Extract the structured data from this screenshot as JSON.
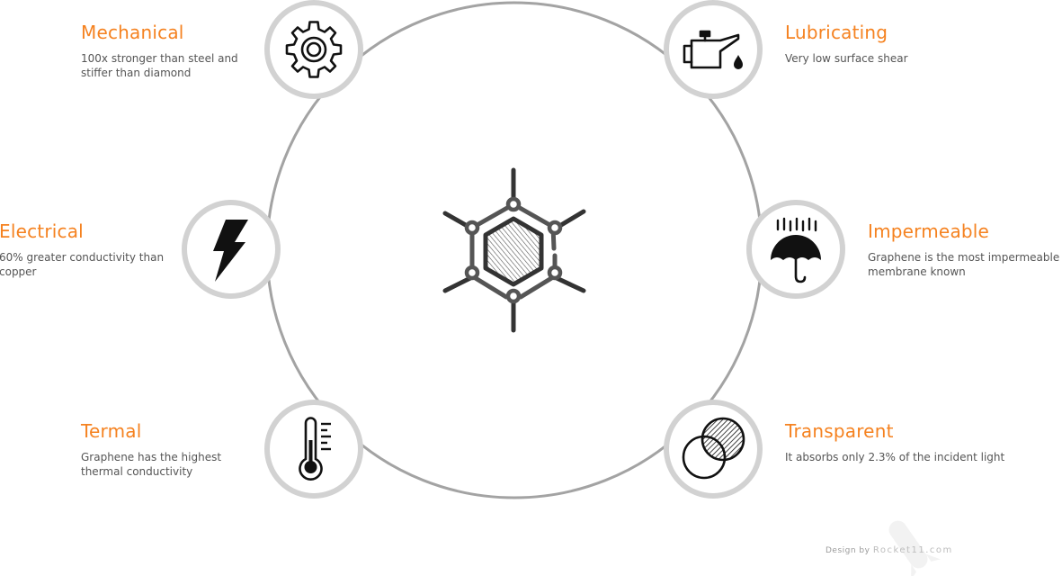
{
  "features": {
    "mechanical": {
      "title": "Mechanical",
      "description": "100x stronger than steel and stiffer than diamond",
      "icon": "gear-icon"
    },
    "lubricating": {
      "title": "Lubricating",
      "description": "Very low surface shear",
      "icon": "oil-can-icon"
    },
    "electrical": {
      "title": "Electrical",
      "description": "60% greater conductivity than copper",
      "icon": "lightning-icon"
    },
    "impermeable": {
      "title": "Impermeable",
      "description": "Graphene is the most impermeable membrane known",
      "icon": "umbrella-icon"
    },
    "termal": {
      "title": "Termal",
      "description": "Graphene has the highest thermal conductivity",
      "icon": "thermometer-icon"
    },
    "transparent": {
      "title": "Transparent",
      "description": "It absorbs only 2.3% of the incident light",
      "icon": "overlapping-circles-icon"
    }
  },
  "center": {
    "icon": "graphene-molecule-icon"
  },
  "credit": {
    "prefix": "Design by",
    "brand": "Rocket11.com"
  },
  "colors": {
    "accent": "#f58220",
    "ring": "#a3a3a3",
    "icon_border": "#d2d2d2",
    "icon": "#111111",
    "text": "#555555"
  }
}
